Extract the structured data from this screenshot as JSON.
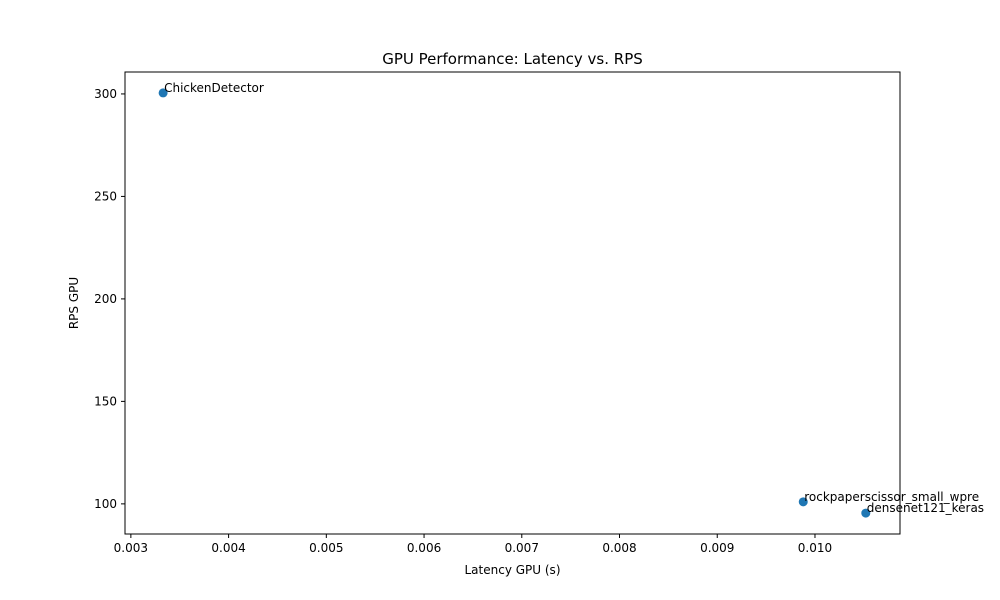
{
  "chart_data": {
    "type": "scatter",
    "title": "GPU Performance: Latency vs. RPS",
    "xlabel": "Latency GPU (s)",
    "ylabel": "RPS GPU",
    "xlim": [
      0.00294,
      0.01087
    ],
    "ylim": [
      85.3,
      310.7
    ],
    "grid": false,
    "xticks": [
      0.003,
      0.004,
      0.005,
      0.006,
      0.007,
      0.008,
      0.009,
      0.01
    ],
    "xtick_labels": [
      "0.003",
      "0.004",
      "0.005",
      "0.006",
      "0.007",
      "0.008",
      "0.009",
      "0.010"
    ],
    "yticks": [
      100,
      150,
      200,
      250,
      300
    ],
    "ytick_labels": [
      "100",
      "150",
      "200",
      "250",
      "300"
    ],
    "marker_color": "#1f77b4",
    "points": [
      {
        "label": "ChickenDetector",
        "x": 0.00333,
        "y": 300.5
      },
      {
        "label": "rockpaperscissor_small_wpre",
        "x": 0.00988,
        "y": 101.0
      },
      {
        "label": "densenet121_keras",
        "x": 0.01052,
        "y": 95.5
      }
    ]
  }
}
